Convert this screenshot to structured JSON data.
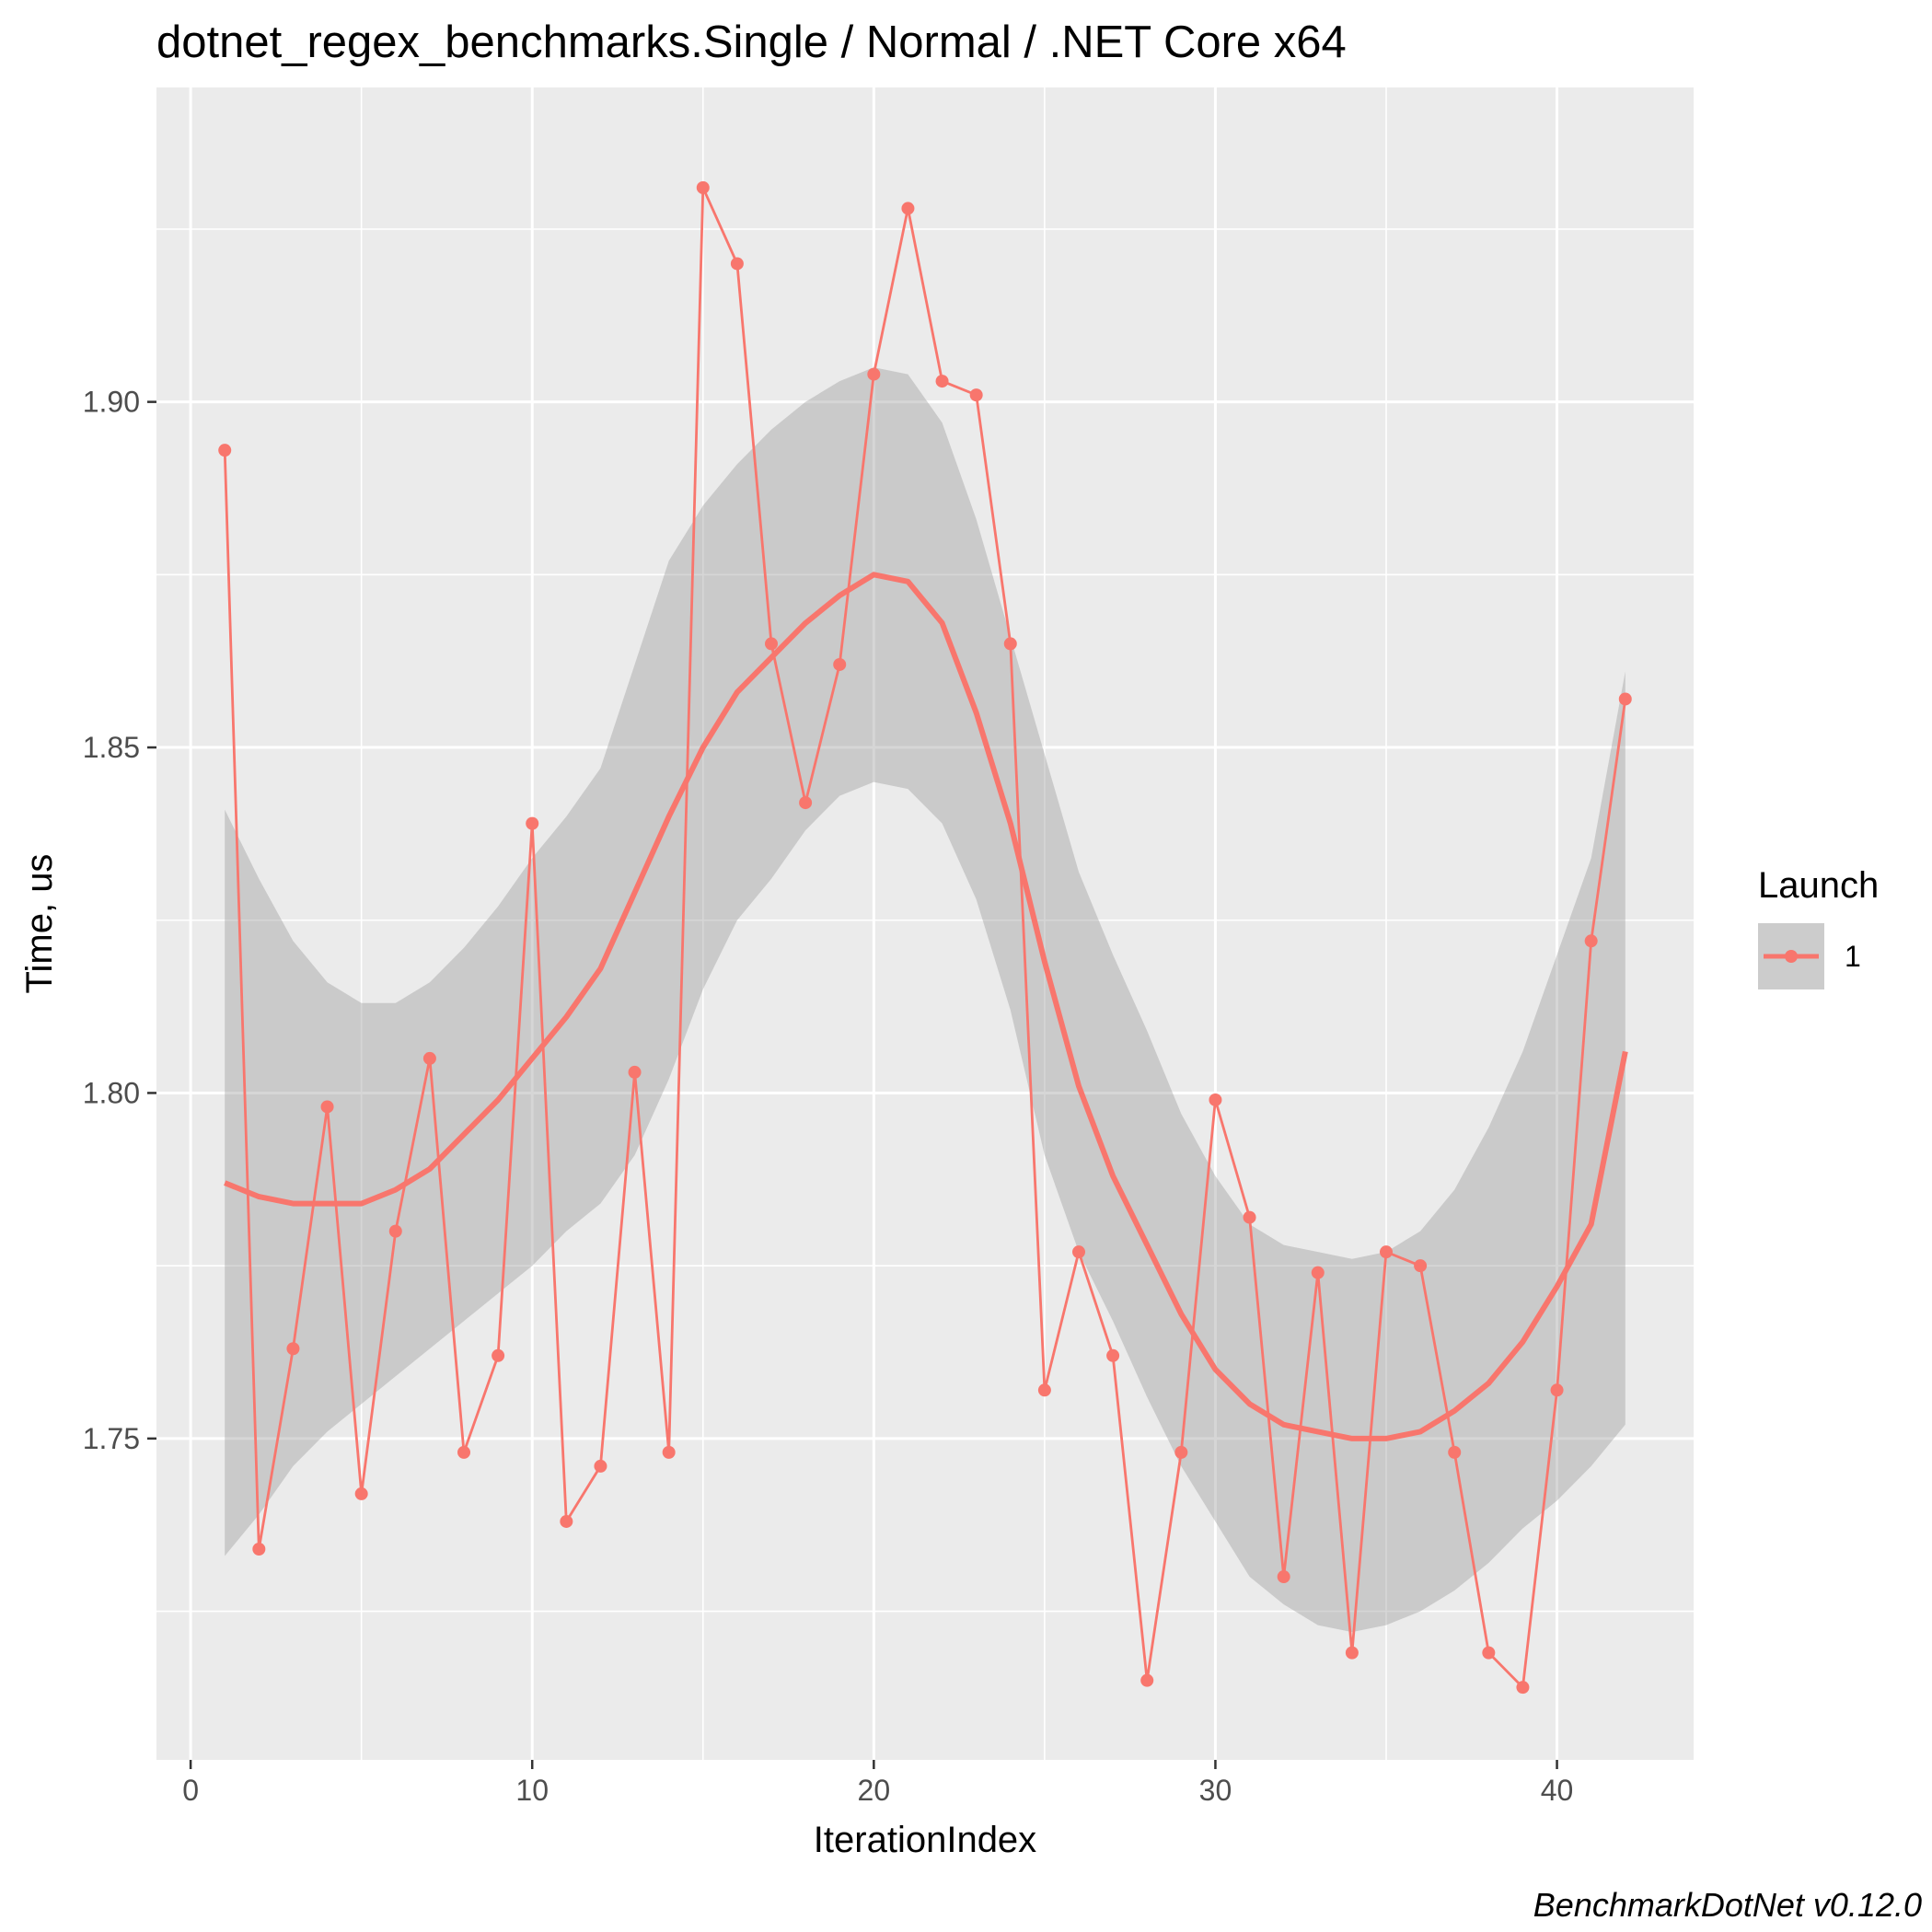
{
  "chart_data": {
    "type": "line",
    "title": "dotnet_regex_benchmarks.Single / Normal / .NET Core x64",
    "xlabel": "IterationIndex",
    "ylabel": "Time, us",
    "caption": "BenchmarkDotNet v0.12.0",
    "xlim": [
      -1,
      44
    ],
    "ylim": [
      1.7035,
      1.9455
    ],
    "x_ticks": [
      0,
      10,
      20,
      30,
      40
    ],
    "x_tick_labels": [
      "0",
      "10",
      "20",
      "30",
      "40"
    ],
    "y_ticks": [
      1.75,
      1.8,
      1.85,
      1.9
    ],
    "y_tick_labels": [
      "1.75",
      "1.80",
      "1.85",
      "1.90"
    ],
    "grid": true,
    "legend": {
      "title": "Launch",
      "position": "right",
      "entries": [
        "1"
      ]
    },
    "colors": {
      "series": "#F8766D",
      "band": "#999999",
      "panel": "#EBEBEB",
      "grid": "#FFFFFF"
    },
    "series": [
      {
        "name": "1",
        "x": [
          1,
          2,
          3,
          4,
          5,
          6,
          7,
          8,
          9,
          10,
          11,
          12,
          13,
          14,
          15,
          16,
          17,
          18,
          19,
          20,
          21,
          22,
          23,
          24,
          25,
          26,
          27,
          28,
          29,
          30,
          31,
          32,
          33,
          34,
          35,
          36,
          37,
          38,
          39,
          40,
          41,
          42
        ],
        "values": [
          1.893,
          1.734,
          1.763,
          1.798,
          1.742,
          1.78,
          1.805,
          1.748,
          1.762,
          1.839,
          1.738,
          1.746,
          1.803,
          1.748,
          1.931,
          1.92,
          1.865,
          1.842,
          1.862,
          1.904,
          1.928,
          1.903,
          1.901,
          1.865,
          1.757,
          1.777,
          1.762,
          1.715,
          1.748,
          1.799,
          1.782,
          1.73,
          1.774,
          1.719,
          1.777,
          1.775,
          1.748,
          1.719,
          1.714,
          1.757,
          1.822,
          1.857
        ]
      }
    ],
    "smooth": {
      "x": [
        1,
        2,
        3,
        4,
        5,
        6,
        7,
        8,
        9,
        10,
        11,
        12,
        13,
        14,
        15,
        16,
        17,
        18,
        19,
        20,
        21,
        22,
        23,
        24,
        25,
        26,
        27,
        28,
        29,
        30,
        31,
        32,
        33,
        34,
        35,
        36,
        37,
        38,
        39,
        40,
        41,
        42
      ],
      "y": [
        1.787,
        1.785,
        1.784,
        1.784,
        1.784,
        1.786,
        1.789,
        1.794,
        1.799,
        1.805,
        1.811,
        1.818,
        1.829,
        1.84,
        1.85,
        1.858,
        1.863,
        1.868,
        1.872,
        1.875,
        1.874,
        1.868,
        1.855,
        1.839,
        1.819,
        1.801,
        1.788,
        1.778,
        1.768,
        1.76,
        1.755,
        1.752,
        1.751,
        1.75,
        1.75,
        1.751,
        1.754,
        1.758,
        1.764,
        1.772,
        1.781,
        1.806
      ],
      "lower": [
        1.733,
        1.739,
        1.746,
        1.751,
        1.755,
        1.759,
        1.763,
        1.767,
        1.771,
        1.775,
        1.78,
        1.784,
        1.791,
        1.802,
        1.815,
        1.825,
        1.831,
        1.838,
        1.843,
        1.845,
        1.844,
        1.839,
        1.828,
        1.812,
        1.791,
        1.777,
        1.767,
        1.756,
        1.746,
        1.738,
        1.73,
        1.726,
        1.723,
        1.722,
        1.723,
        1.725,
        1.728,
        1.732,
        1.737,
        1.741,
        1.746,
        1.752
      ],
      "upper": [
        1.841,
        1.831,
        1.822,
        1.816,
        1.813,
        1.813,
        1.816,
        1.821,
        1.827,
        1.834,
        1.84,
        1.847,
        1.862,
        1.877,
        1.885,
        1.891,
        1.896,
        1.9,
        1.903,
        1.905,
        1.904,
        1.897,
        1.883,
        1.866,
        1.849,
        1.832,
        1.82,
        1.809,
        1.797,
        1.788,
        1.781,
        1.778,
        1.777,
        1.776,
        1.777,
        1.78,
        1.786,
        1.795,
        1.806,
        1.82,
        1.834,
        1.861
      ]
    }
  }
}
